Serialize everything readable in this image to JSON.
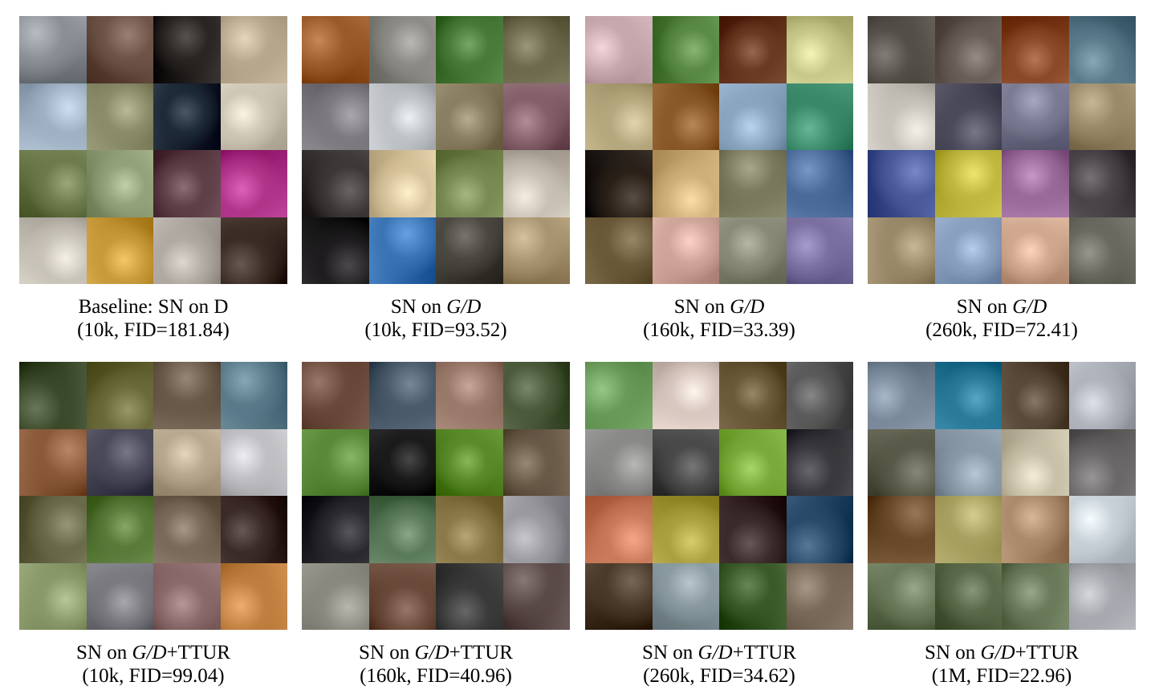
{
  "figure": {
    "panels": [
      {
        "id": "p1",
        "caption_line1_prefix": "Baseline: SN on D",
        "caption_line1_italic": "",
        "caption_line1_suffix": "",
        "caption_line2": "(10k, FID=181.84)",
        "palette": [
          "#8a8f95",
          "#6e5348",
          "#2a2522",
          "#b8a98e",
          "#9fb1c3",
          "#8b8c6a",
          "#1d2a38",
          "#cfc7b5",
          "#6c7a4c",
          "#93a27a",
          "#5f3f48",
          "#b0358a",
          "#c8c3b8",
          "#c89a3a",
          "#b0aaa2",
          "#3b2c25"
        ]
      },
      {
        "id": "p2",
        "caption_line1_prefix": "SN on ",
        "caption_line1_italic": "G/D",
        "caption_line1_suffix": "",
        "caption_line2": "(10k, FID=93.52)",
        "palette": [
          "#9a5a2a",
          "#8d8b86",
          "#4a7a3a",
          "#6e6a4e",
          "#7d7a80",
          "#c0c4c8",
          "#8a7f62",
          "#84606a",
          "#3d3838",
          "#d8c49c",
          "#7a8a54",
          "#c8c0b4",
          "#1e1c1e",
          "#3a74b4",
          "#4a4640",
          "#a89470"
        ]
      },
      {
        "id": "p3",
        "caption_line1_prefix": "SN on ",
        "caption_line1_italic": "G/D",
        "caption_line1_suffix": "",
        "caption_line2": "(160k, FID=33.39)",
        "palette": [
          "#c6a8ae",
          "#5a8a46",
          "#6a3a22",
          "#c8c88a",
          "#b6a87e",
          "#8a5a2a",
          "#8aa6c0",
          "#3a8a6a",
          "#2a2018",
          "#d0b07a",
          "#7c7a5e",
          "#4a6a9a",
          "#6a5a3a",
          "#cfa59a",
          "#8a8a78",
          "#7a70a0"
        ]
      },
      {
        "id": "p4",
        "caption_line1_prefix": "SN on ",
        "caption_line1_italic": "G/D",
        "caption_line1_suffix": "",
        "caption_line2": "(260k, FID=72.41)",
        "palette": [
          "#55504a",
          "#6a5f58",
          "#8a4a2a",
          "#5a7a8a",
          "#c8c4bc",
          "#4a4a5a",
          "#7a7a92",
          "#9a8a6a",
          "#4a5a9a",
          "#c0b840",
          "#9a6a9a",
          "#4a4448",
          "#9a8a6a",
          "#8aa0c0",
          "#d0a890",
          "#6a6a60"
        ]
      },
      {
        "id": "p5",
        "caption_line1_prefix": "SN on ",
        "caption_line1_italic": "G/D",
        "caption_line1_suffix": "+TTUR",
        "caption_line2": "(10k, FID=99.04)",
        "palette": [
          "#3a4a2a",
          "#6a6a3a",
          "#6a5a4a",
          "#5a7a8a",
          "#8a5a3a",
          "#4a4a5a",
          "#b8a890",
          "#c0c0c4",
          "#6a6a4a",
          "#5a7a3a",
          "#7a6a5a",
          "#3a2a28",
          "#8a9a6a",
          "#7a7a80",
          "#8a6a6a",
          "#c08040"
        ]
      },
      {
        "id": "p6",
        "caption_line1_prefix": "SN on ",
        "caption_line1_italic": "G/D",
        "caption_line1_suffix": "+TTUR",
        "caption_line2": "(160k, FID=40.96)",
        "palette": [
          "#6a4a3a",
          "#4a5a6a",
          "#9a7a6a",
          "#4a5a3a",
          "#5a8a3a",
          "#1a1a1a",
          "#5a8a2a",
          "#6a5a48",
          "#2a2a2e",
          "#5a7a5a",
          "#8a7a4a",
          "#9a9aa0",
          "#8a8a80",
          "#6a4a3a",
          "#3a3a3a",
          "#5a4a48"
        ]
      },
      {
        "id": "p7",
        "caption_line1_prefix": "SN on ",
        "caption_line1_italic": "G/D",
        "caption_line1_suffix": "+TTUR",
        "caption_line2": "(260k, FID=34.62)",
        "palette": [
          "#6a9a5a",
          "#d8c8c0",
          "#6a5a3a",
          "#5a5a5a",
          "#8a8a88",
          "#4a4a4a",
          "#7aaa3a",
          "#3a3a3e",
          "#c87a5a",
          "#aaa040",
          "#3a2a2a",
          "#2a4a6a",
          "#4a3a2a",
          "#8a9aa0",
          "#3a5a2a",
          "#7a6a5a"
        ]
      },
      {
        "id": "p8",
        "caption_line1_prefix": "SN on ",
        "caption_line1_italic": "G/D",
        "caption_line1_suffix": "+TTUR",
        "caption_line2": "(1M, FID=22.96)",
        "palette": [
          "#7a8a9a",
          "#2a7a9a",
          "#5a4a3a",
          "#b0b4bc",
          "#5a5a4a",
          "#8a9aa8",
          "#c8c0a8",
          "#6a6868",
          "#6a4a2a",
          "#a8a060",
          "#aa8a6a",
          "#c8d0d8",
          "#6a7a5a",
          "#5a6a4a",
          "#6a7a5a",
          "#a8aab0"
        ]
      }
    ]
  }
}
